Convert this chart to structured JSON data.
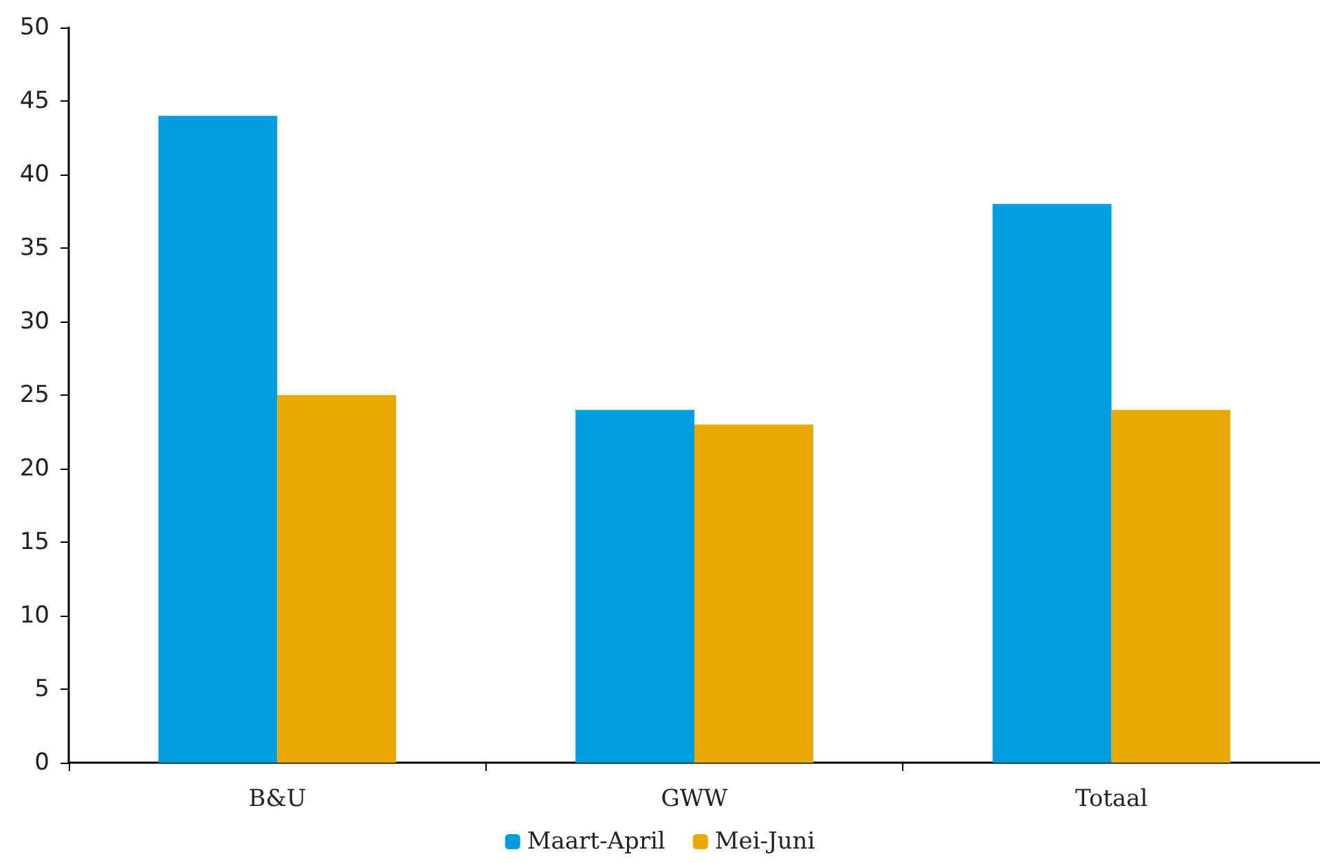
{
  "chart_data": {
    "type": "bar",
    "categories": [
      "B&U",
      "GWW",
      "Totaal"
    ],
    "series": [
      {
        "name": "Maart-April",
        "color": "#009ee0",
        "values": [
          44,
          24,
          38
        ]
      },
      {
        "name": "Mei-Juni",
        "color": "#e8aa00",
        "values": [
          25,
          23,
          24
        ]
      }
    ],
    "ylim": [
      0,
      50
    ],
    "yticks": [
      0,
      5,
      10,
      15,
      20,
      25,
      30,
      35,
      40,
      45,
      50
    ],
    "grid": false,
    "legend": "bottom"
  }
}
